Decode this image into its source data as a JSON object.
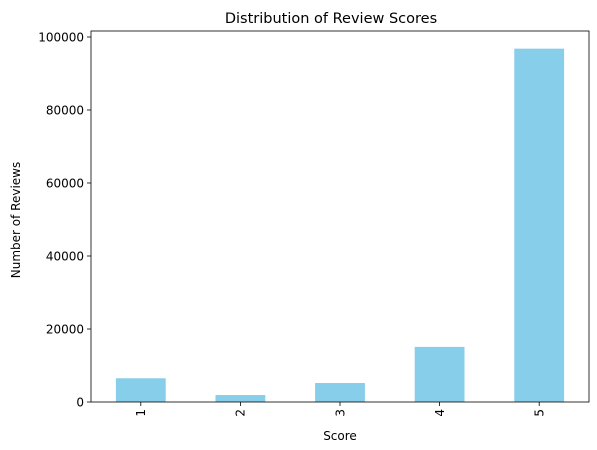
{
  "chart_data": {
    "type": "bar",
    "title": "Distribution of Review Scores",
    "xlabel": "Score",
    "ylabel": "Number of Reviews",
    "categories": [
      "1",
      "2",
      "3",
      "4",
      "5"
    ],
    "values": [
      6500,
      1900,
      5200,
      15100,
      96800
    ],
    "ylim": [
      0,
      101640
    ],
    "yticks": [
      0,
      20000,
      40000,
      60000,
      80000,
      100000
    ],
    "bar_color": "#87CEEB",
    "grid": false,
    "legend": false
  }
}
